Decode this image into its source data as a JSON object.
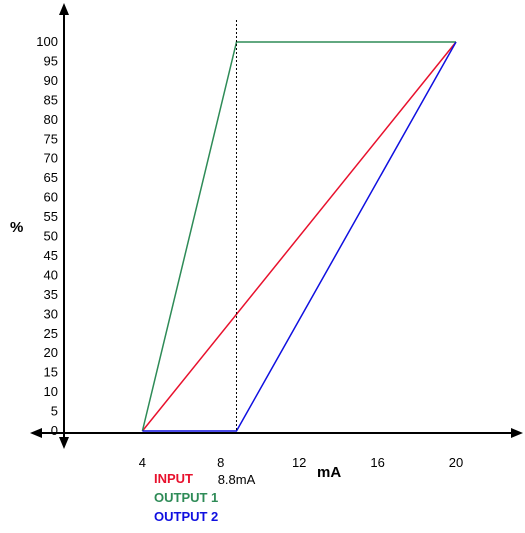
{
  "chart_data": {
    "type": "line",
    "title": "",
    "xlabel": "mA",
    "ylabel": "%",
    "xlim": [
      0,
      20
    ],
    "ylim": [
      0,
      100
    ],
    "x_ticks": [
      4,
      8,
      12,
      16,
      20
    ],
    "x_tick_labels": [
      "4",
      "8",
      "12",
      "16",
      "20"
    ],
    "y_ticks": [
      0,
      5,
      10,
      15,
      20,
      25,
      30,
      35,
      40,
      45,
      50,
      55,
      60,
      65,
      70,
      75,
      80,
      85,
      90,
      95,
      100
    ],
    "y_tick_labels": [
      "0",
      "5",
      "10",
      "15",
      "20",
      "25",
      "30",
      "35",
      "40",
      "45",
      "50",
      "55",
      "60",
      "65",
      "70",
      "75",
      "80",
      "85",
      "90",
      "95",
      "100"
    ],
    "grid": false,
    "annotations": [
      {
        "text": "8.8mA",
        "x": 8.8
      }
    ],
    "series": [
      {
        "name": "INPUT",
        "color": "#e8112d",
        "x": [
          4,
          20
        ],
        "y": [
          0,
          100
        ]
      },
      {
        "name": "OUTPUT 1",
        "color": "#2e8b57",
        "x": [
          4,
          8.8,
          20
        ],
        "y": [
          0,
          100,
          100
        ]
      },
      {
        "name": "OUTPUT 2",
        "color": "#1010e0",
        "x": [
          4,
          8.8,
          20
        ],
        "y": [
          0,
          0,
          100
        ]
      }
    ]
  }
}
